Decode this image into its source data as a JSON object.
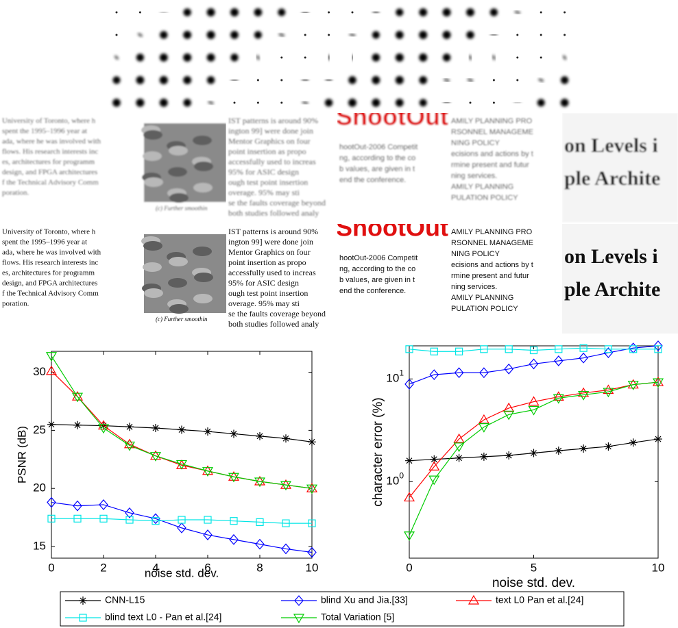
{
  "figure": {
    "crops": [
      {
        "lines": [
          "University of Toronto, where h",
          "spent the 1995–1996 year at",
          "ada, where he was involved with",
          "flows. His research interests inc",
          "es, architectures for programm",
          "design, and FPGA architectures",
          "f the Technical Advisory Comm",
          "poration."
        ]
      },
      {
        "caption": "(c) Further smoothin"
      },
      {
        "lines": [
          "IST patterns is around 90%",
          "ington 99] were done join",
          "Mentor Graphics on four",
          "point insertion as propo",
          "accessfully used to increas",
          "95% for ASIC design",
          "ough test point insertion",
          "overage. 95% may sti",
          "se the faults coverage beyond",
          "both studies followed analy"
        ]
      },
      {
        "heading": "ShootOut",
        "lines": [
          "hootOut-2006 Competit",
          "ng, according to the co",
          "b values, are given in t",
          "end the conference."
        ]
      },
      {
        "lines": [
          "AMILY PLANNING PRO",
          "RSONNEL MANAGEME",
          "NING POLICY",
          "ecisions and actions by t",
          "rmine present and futur",
          "ning services.",
          "AMILY PLANNING",
          "PULATION POLICY"
        ]
      },
      {
        "lines": [
          "on Levels i",
          "ple Archite"
        ]
      }
    ]
  },
  "chart_data": [
    {
      "type": "line",
      "xlabel": "noise std. dev.",
      "ylabel": "PSNR (dB)",
      "x": [
        0,
        1,
        2,
        3,
        4,
        5,
        6,
        7,
        8,
        9,
        10
      ],
      "xlim": [
        0,
        10
      ],
      "xticks": [
        0,
        2,
        4,
        6,
        8,
        10
      ],
      "ylim": [
        14,
        31.8
      ],
      "yticks": [
        15,
        20,
        25,
        30
      ],
      "series": [
        {
          "name": "CNN-L15",
          "color": "#000000",
          "marker": "star",
          "values": [
            25.5,
            25.45,
            25.4,
            25.3,
            25.2,
            25.05,
            24.9,
            24.7,
            24.5,
            24.3,
            24.0
          ]
        },
        {
          "name": "blind Xu and Jia.[33]",
          "color": "#0000ff",
          "marker": "diamond",
          "values": [
            18.8,
            18.5,
            18.6,
            17.9,
            17.4,
            16.6,
            16.0,
            15.6,
            15.2,
            14.8,
            14.5
          ]
        },
        {
          "name": "text L0 Pan et al.[24]",
          "color": "#ff0000",
          "marker": "triangle-up",
          "values": [
            30.1,
            27.9,
            25.4,
            23.8,
            22.8,
            22.0,
            21.5,
            21.0,
            20.6,
            20.3,
            20.0
          ]
        },
        {
          "name": "blind text L0 - Pan et al.[24]",
          "color": "#00e5e5",
          "marker": "square",
          "values": [
            17.4,
            17.4,
            17.4,
            17.3,
            17.2,
            17.3,
            17.3,
            17.2,
            17.1,
            17.0,
            17.0
          ]
        },
        {
          "name": "Total Variation [5]",
          "color": "#00cc00",
          "marker": "triangle-down",
          "values": [
            31.4,
            27.9,
            25.2,
            23.7,
            22.8,
            22.1,
            21.5,
            21.0,
            20.6,
            20.3,
            20.0
          ]
        }
      ]
    },
    {
      "type": "line",
      "log_y": true,
      "xlabel": "noise std. dev.",
      "ylabel": "character error (%)",
      "x": [
        0,
        1,
        2,
        3,
        4,
        5,
        6,
        7,
        8,
        9,
        10
      ],
      "xlim": [
        0,
        10
      ],
      "xticks": [
        0,
        5,
        10
      ],
      "ylim": [
        0.18,
        21
      ],
      "yticks": [
        {
          "value": 1,
          "label": "10^0"
        },
        {
          "value": 10,
          "label": "10^1"
        }
      ],
      "series": [
        {
          "name": "CNN-L15",
          "color": "#000000",
          "marker": "star",
          "values": [
            1.6,
            1.65,
            1.7,
            1.75,
            1.8,
            1.9,
            2.0,
            2.1,
            2.2,
            2.4,
            2.6
          ]
        },
        {
          "name": "blind Xu and Jia.[33]",
          "color": "#0000ff",
          "marker": "diamond",
          "values": [
            8.9,
            11,
            11.5,
            11.5,
            12.5,
            14,
            15,
            16,
            18,
            20,
            21
          ]
        },
        {
          "name": "text L0 Pan et al.[24]",
          "color": "#ff0000",
          "marker": "triangle-up",
          "values": [
            0.7,
            1.4,
            2.6,
            4,
            5.2,
            6,
            6.7,
            7.3,
            7.8,
            8.8,
            9.3
          ]
        },
        {
          "name": "blind text L0 - Pan et al.[24]",
          "color": "#00e5e5",
          "marker": "square",
          "values": [
            19.5,
            18.5,
            18.5,
            19.5,
            19.5,
            19,
            19.5,
            20,
            19.5,
            19.5,
            19.5
          ]
        },
        {
          "name": "Total Variation [5]",
          "color": "#00cc00",
          "marker": "triangle-down",
          "values": [
            0.3,
            1.05,
            2.2,
            3.4,
            4.5,
            5,
            6.5,
            7,
            7.5,
            8.8,
            9.3
          ]
        }
      ]
    }
  ]
}
